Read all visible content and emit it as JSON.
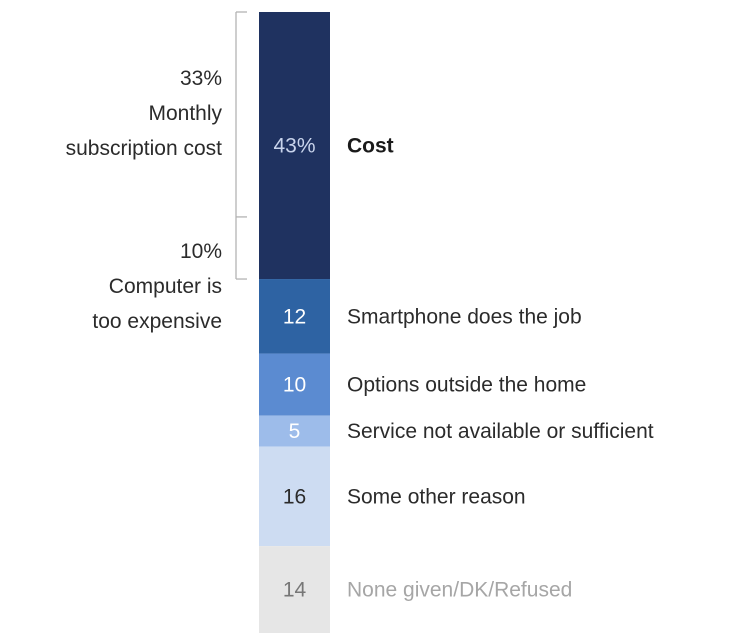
{
  "chart_data": {
    "type": "bar",
    "orientation": "vertical",
    "stacked": true,
    "categories": [
      "Cost",
      "Smartphone does the job",
      "Options outside the home",
      "Service not available or sufficient",
      "Some other reason",
      "None given/DK/Refused"
    ],
    "values": [
      43,
      12,
      10,
      5,
      16,
      14
    ],
    "value_labels": [
      "43%",
      "12",
      "10",
      "5",
      "16",
      "14"
    ],
    "segment_colors": [
      "#1f3260",
      "#2e63a3",
      "#5b8bd1",
      "#9dbcea",
      "#cddcf2",
      "#e6e6e6"
    ],
    "value_colors": [
      "#c9d4ec",
      "#ffffff",
      "#ffffff",
      "#ffffff",
      "#2b2b2b",
      "#777777"
    ],
    "label_colors": [
      "#1a1a1a",
      "#2b2b2b",
      "#2b2b2b",
      "#2b2b2b",
      "#2b2b2b",
      "#a6a6a6"
    ],
    "total": 100,
    "cost_breakdown": [
      {
        "value": "33%",
        "lines": [
          "Monthly",
          "subscription cost"
        ]
      },
      {
        "value": "10%",
        "lines": [
          "Computer is",
          "too expensive"
        ]
      }
    ]
  }
}
